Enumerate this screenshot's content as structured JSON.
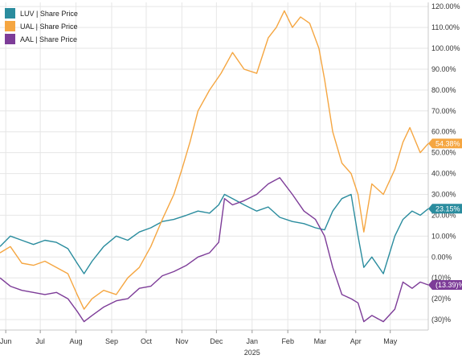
{
  "chart_data": {
    "type": "line",
    "y_unit": "percent",
    "ylim": [
      -35,
      122
    ],
    "y_ticks": [
      {
        "value": 120,
        "label": "120.00%"
      },
      {
        "value": 110,
        "label": "110.00%"
      },
      {
        "value": 100,
        "label": "100.00%"
      },
      {
        "value": 90,
        "label": "90.00%"
      },
      {
        "value": 80,
        "label": "80.00%"
      },
      {
        "value": 70,
        "label": "70.00%"
      },
      {
        "value": 60,
        "label": "60.00%"
      },
      {
        "value": 50,
        "label": "50.00%"
      },
      {
        "value": 40,
        "label": "40.00%"
      },
      {
        "value": 30,
        "label": "30.00%"
      },
      {
        "value": 20,
        "label": "20.00%"
      },
      {
        "value": 10,
        "label": "10.00%"
      },
      {
        "value": 0,
        "label": "0.00%"
      },
      {
        "value": -10,
        "label": "(10)%"
      },
      {
        "value": -20,
        "label": "(20)%"
      },
      {
        "value": -30,
        "label": "(30)%"
      }
    ],
    "xlim": [
      "2024-05-27",
      "2025-06-03"
    ],
    "x_ticks": [
      {
        "date": "2024-06-01",
        "label": "Jun"
      },
      {
        "date": "2024-07-01",
        "label": "Jul"
      },
      {
        "date": "2024-08-01",
        "label": "Aug"
      },
      {
        "date": "2024-09-01",
        "label": "Sep"
      },
      {
        "date": "2024-10-01",
        "label": "Oct"
      },
      {
        "date": "2024-11-01",
        "label": "Nov"
      },
      {
        "date": "2024-12-01",
        "label": "Dec"
      },
      {
        "date": "2025-01-01",
        "label": "Jan",
        "sublabel": "2025"
      },
      {
        "date": "2025-02-01",
        "label": "Feb"
      },
      {
        "date": "2025-03-01",
        "label": "Mar"
      },
      {
        "date": "2025-04-01",
        "label": "Apr"
      },
      {
        "date": "2025-05-01",
        "label": "May"
      }
    ],
    "grid": true,
    "legend_position": "top-left",
    "series": [
      {
        "name": "LUV | Share Price",
        "color": "#2a8c9e",
        "end_label": "23.15%",
        "points": [
          [
            "2024-05-27",
            5
          ],
          [
            "2024-06-05",
            10
          ],
          [
            "2024-06-15",
            8
          ],
          [
            "2024-06-25",
            6
          ],
          [
            "2024-07-05",
            8
          ],
          [
            "2024-07-15",
            7
          ],
          [
            "2024-07-25",
            4
          ],
          [
            "2024-08-02",
            -3
          ],
          [
            "2024-08-08",
            -8
          ],
          [
            "2024-08-15",
            -2
          ],
          [
            "2024-08-25",
            5
          ],
          [
            "2024-09-05",
            10
          ],
          [
            "2024-09-15",
            8
          ],
          [
            "2024-09-25",
            12
          ],
          [
            "2024-10-05",
            14
          ],
          [
            "2024-10-15",
            17
          ],
          [
            "2024-10-25",
            18
          ],
          [
            "2024-11-05",
            20
          ],
          [
            "2024-11-15",
            22
          ],
          [
            "2024-11-25",
            21
          ],
          [
            "2024-12-03",
            25
          ],
          [
            "2024-12-08",
            30
          ],
          [
            "2024-12-15",
            28
          ],
          [
            "2024-12-25",
            25
          ],
          [
            "2025-01-05",
            22
          ],
          [
            "2025-01-15",
            24
          ],
          [
            "2025-01-25",
            19
          ],
          [
            "2025-02-05",
            17
          ],
          [
            "2025-02-15",
            16
          ],
          [
            "2025-02-25",
            14
          ],
          [
            "2025-03-05",
            13
          ],
          [
            "2025-03-12",
            22
          ],
          [
            "2025-03-20",
            28
          ],
          [
            "2025-03-28",
            30
          ],
          [
            "2025-04-03",
            10
          ],
          [
            "2025-04-08",
            -5
          ],
          [
            "2025-04-15",
            0
          ],
          [
            "2025-04-25",
            -8
          ],
          [
            "2025-05-05",
            10
          ],
          [
            "2025-05-12",
            18
          ],
          [
            "2025-05-20",
            22
          ],
          [
            "2025-05-27",
            20
          ],
          [
            "2025-06-03",
            23.15
          ]
        ]
      },
      {
        "name": "UAL | Share Price",
        "color": "#f5a641",
        "end_label": "54.38%",
        "points": [
          [
            "2024-05-27",
            2
          ],
          [
            "2024-06-05",
            5
          ],
          [
            "2024-06-15",
            -3
          ],
          [
            "2024-06-25",
            -4
          ],
          [
            "2024-07-05",
            -2
          ],
          [
            "2024-07-15",
            -5
          ],
          [
            "2024-07-25",
            -8
          ],
          [
            "2024-08-02",
            -18
          ],
          [
            "2024-08-08",
            -25
          ],
          [
            "2024-08-15",
            -20
          ],
          [
            "2024-08-25",
            -16
          ],
          [
            "2024-09-05",
            -18
          ],
          [
            "2024-09-15",
            -10
          ],
          [
            "2024-09-25",
            -5
          ],
          [
            "2024-10-05",
            5
          ],
          [
            "2024-10-15",
            18
          ],
          [
            "2024-10-25",
            30
          ],
          [
            "2024-11-01",
            42
          ],
          [
            "2024-11-08",
            55
          ],
          [
            "2024-11-15",
            70
          ],
          [
            "2024-11-25",
            80
          ],
          [
            "2024-12-05",
            88
          ],
          [
            "2024-12-15",
            98
          ],
          [
            "2024-12-25",
            90
          ],
          [
            "2025-01-05",
            88
          ],
          [
            "2025-01-15",
            105
          ],
          [
            "2025-01-22",
            110
          ],
          [
            "2025-01-29",
            118
          ],
          [
            "2025-02-05",
            110
          ],
          [
            "2025-02-12",
            115
          ],
          [
            "2025-02-20",
            112
          ],
          [
            "2025-02-28",
            100
          ],
          [
            "2025-03-05",
            85
          ],
          [
            "2025-03-12",
            60
          ],
          [
            "2025-03-20",
            45
          ],
          [
            "2025-03-28",
            40
          ],
          [
            "2025-04-03",
            30
          ],
          [
            "2025-04-08",
            12
          ],
          [
            "2025-04-15",
            35
          ],
          [
            "2025-04-25",
            30
          ],
          [
            "2025-05-05",
            42
          ],
          [
            "2025-05-12",
            55
          ],
          [
            "2025-05-18",
            62
          ],
          [
            "2025-05-27",
            50
          ],
          [
            "2025-06-03",
            54.38
          ]
        ]
      },
      {
        "name": "AAL | Share Price",
        "color": "#7d3c98",
        "end_label": "(13.39)%",
        "points": [
          [
            "2024-05-27",
            -10
          ],
          [
            "2024-06-05",
            -14
          ],
          [
            "2024-06-15",
            -16
          ],
          [
            "2024-06-25",
            -17
          ],
          [
            "2024-07-05",
            -18
          ],
          [
            "2024-07-15",
            -17
          ],
          [
            "2024-07-25",
            -20
          ],
          [
            "2024-08-02",
            -26
          ],
          [
            "2024-08-08",
            -31
          ],
          [
            "2024-08-15",
            -28
          ],
          [
            "2024-08-25",
            -24
          ],
          [
            "2024-09-05",
            -21
          ],
          [
            "2024-09-15",
            -20
          ],
          [
            "2024-09-25",
            -15
          ],
          [
            "2024-10-05",
            -14
          ],
          [
            "2024-10-15",
            -9
          ],
          [
            "2024-10-25",
            -7
          ],
          [
            "2024-11-05",
            -4
          ],
          [
            "2024-11-15",
            0
          ],
          [
            "2024-11-25",
            2
          ],
          [
            "2024-12-03",
            7
          ],
          [
            "2024-12-08",
            28
          ],
          [
            "2024-12-15",
            25
          ],
          [
            "2024-12-25",
            27
          ],
          [
            "2025-01-05",
            30
          ],
          [
            "2025-01-15",
            35
          ],
          [
            "2025-01-25",
            38
          ],
          [
            "2025-02-05",
            30
          ],
          [
            "2025-02-15",
            22
          ],
          [
            "2025-02-25",
            18
          ],
          [
            "2025-03-05",
            10
          ],
          [
            "2025-03-12",
            -5
          ],
          [
            "2025-03-20",
            -18
          ],
          [
            "2025-03-28",
            -20
          ],
          [
            "2025-04-03",
            -22
          ],
          [
            "2025-04-08",
            -31
          ],
          [
            "2025-04-15",
            -28
          ],
          [
            "2025-04-25",
            -31
          ],
          [
            "2025-05-05",
            -25
          ],
          [
            "2025-05-12",
            -12
          ],
          [
            "2025-05-20",
            -15
          ],
          [
            "2025-05-27",
            -12
          ],
          [
            "2025-06-03",
            -13.39
          ]
        ]
      }
    ]
  }
}
